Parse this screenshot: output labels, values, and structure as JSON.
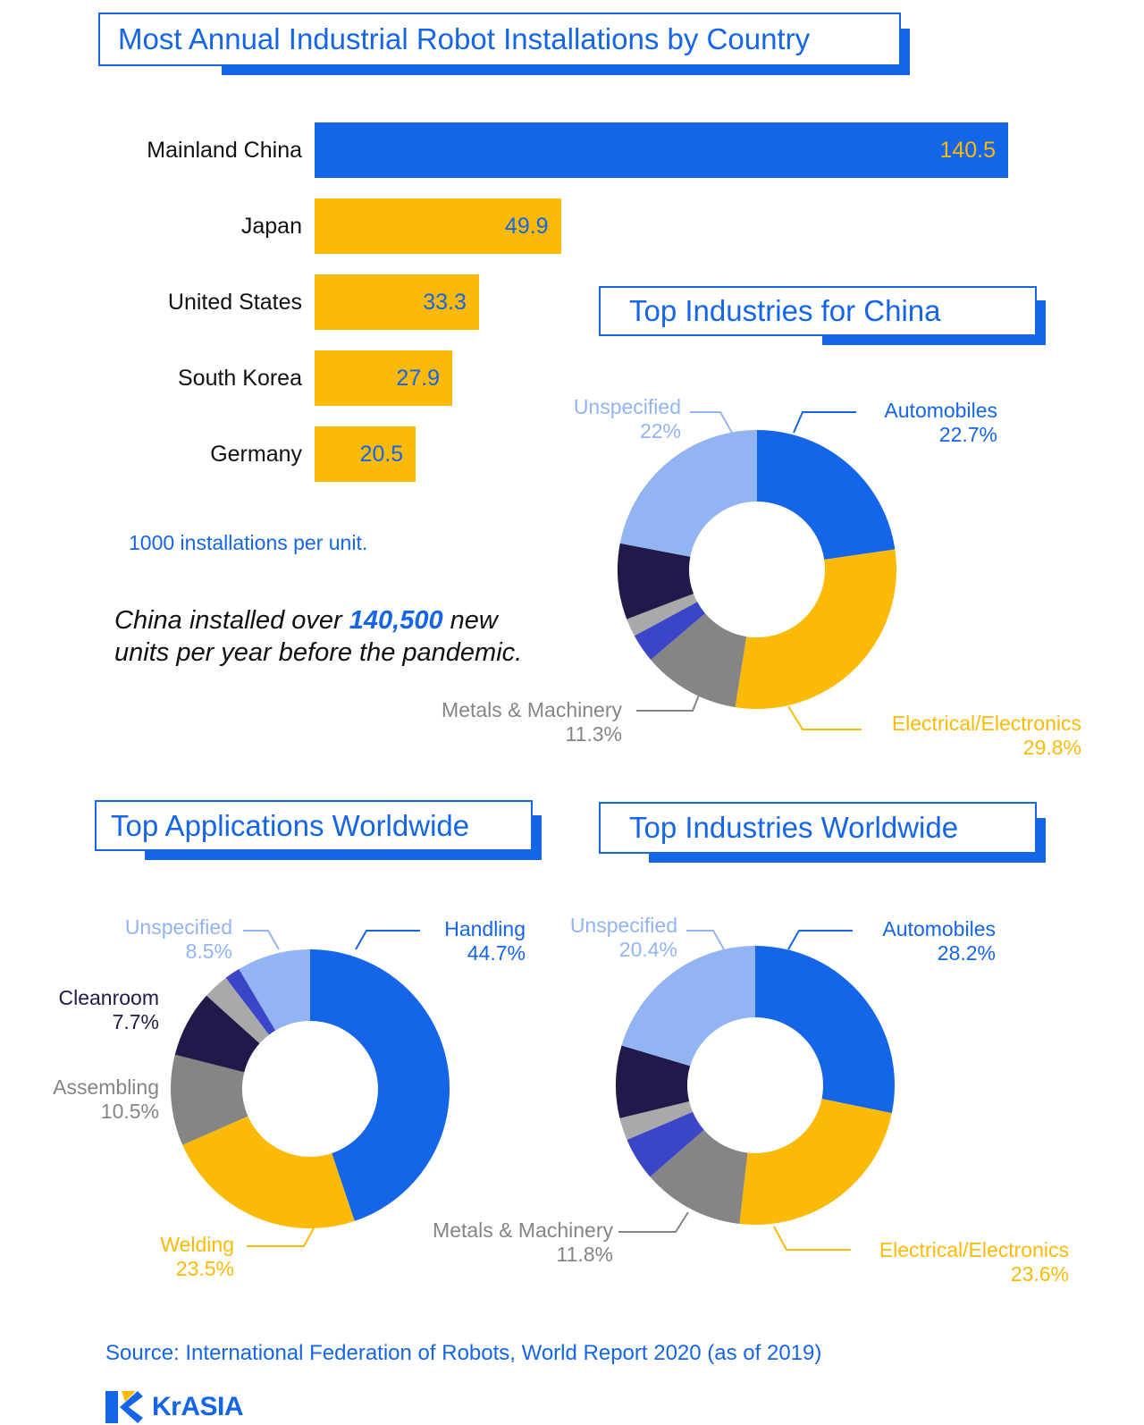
{
  "titles": {
    "main": "Most Annual Industrial Robot Installations by Country",
    "china_industries": "Top Industries for China",
    "applications_worldwide": "Top Applications Worldwide",
    "industries_worldwide": "Top Industries Worldwide"
  },
  "unit_note": "1000 installations per unit.",
  "callout": {
    "before": "China installed over ",
    "highlight": "140,500",
    "after": " new units per year before the pandemic."
  },
  "source": "Source: International Federation of Robots, World Report 2020 (as of 2019)",
  "logo": {
    "text": "KrASIA",
    "icon": "krasia-logo-icon"
  },
  "colors": {
    "blue": "#1565e8",
    "yellow": "#fbba07",
    "light_blue": "#93b4f2",
    "navy": "#1f1a4a",
    "gray": "#858585",
    "light_gray": "#a9a9a9",
    "indigo": "#3a45c8"
  },
  "chart_data": [
    {
      "type": "bar",
      "orientation": "horizontal",
      "title": "Most Annual Industrial Robot Installations by Country",
      "categories": [
        "Mainland China",
        "Japan",
        "United States",
        "South Korea",
        "Germany"
      ],
      "values": [
        140.5,
        49.9,
        33.3,
        27.9,
        20.5
      ],
      "value_labels": [
        "140.5",
        "49.9",
        "33.3",
        "27.9",
        "20.5"
      ],
      "unit": "1000 installations per unit.",
      "xlim": [
        0,
        140.5
      ],
      "highlight": "Mainland China"
    },
    {
      "type": "pie",
      "style": "donut",
      "title": "Top Industries for China",
      "slices": [
        {
          "name": "Automobiles",
          "value": 22.7,
          "label": "Automobiles",
          "pct": "22.7%",
          "color": "#1565e8"
        },
        {
          "name": "Electrical/Electronics",
          "value": 29.8,
          "label": "Electrical/Electronics",
          "pct": "29.8%",
          "color": "#fbba07"
        },
        {
          "name": "Metals & Machinery",
          "value": 11.3,
          "label": "Metals & Machinery",
          "pct": "11.3%",
          "color": "#858585"
        },
        {
          "name": "other-1",
          "value": 3.3,
          "color": "#3a45c8"
        },
        {
          "name": "other-2",
          "value": 2.1,
          "color": "#a9a9a9"
        },
        {
          "name": "other-3",
          "value": 8.8,
          "color": "#1f1a4a"
        },
        {
          "name": "Unspecified",
          "value": 22,
          "label": "Unspecified",
          "pct": "22%",
          "color": "#93b4f2"
        }
      ]
    },
    {
      "type": "pie",
      "style": "donut",
      "title": "Top Applications Worldwide",
      "slices": [
        {
          "name": "Handling",
          "value": 44.7,
          "label": "Handling",
          "pct": "44.7%",
          "color": "#1565e8"
        },
        {
          "name": "Welding",
          "value": 23.5,
          "label": "Welding",
          "pct": "23.5%",
          "color": "#fbba07"
        },
        {
          "name": "Assembling",
          "value": 10.5,
          "label": "Assembling",
          "pct": "10.5%",
          "color": "#858585"
        },
        {
          "name": "Cleanroom",
          "value": 7.7,
          "label": "Cleanroom",
          "pct": "7.7%",
          "color": "#1f1a4a"
        },
        {
          "name": "other-1",
          "value": 3.0,
          "color": "#a9a9a9"
        },
        {
          "name": "other-2",
          "value": 1.8,
          "color": "#3a45c8"
        },
        {
          "name": "Unspecified",
          "value": 8.5,
          "label": "Unspecified",
          "pct": "8.5%",
          "color": "#93b4f2"
        }
      ]
    },
    {
      "type": "pie",
      "style": "donut",
      "title": "Top Industries Worldwide",
      "slices": [
        {
          "name": "Automobiles",
          "value": 28.2,
          "label": "Automobiles",
          "pct": "28.2%",
          "color": "#1565e8"
        },
        {
          "name": "Electrical/Electronics",
          "value": 23.6,
          "label": "Electrical/Electronics",
          "pct": "23.6%",
          "color": "#fbba07"
        },
        {
          "name": "Metals & Machinery",
          "value": 11.8,
          "label": "Metals & Machinery",
          "pct": "11.8%",
          "color": "#858585"
        },
        {
          "name": "other-1",
          "value": 5.0,
          "color": "#3a45c8"
        },
        {
          "name": "other-2",
          "value": 2.6,
          "color": "#a9a9a9"
        },
        {
          "name": "other-3",
          "value": 8.4,
          "color": "#1f1a4a"
        },
        {
          "name": "Unspecified",
          "value": 20.4,
          "label": "Unspecified",
          "pct": "20.4%",
          "color": "#93b4f2"
        }
      ]
    }
  ]
}
